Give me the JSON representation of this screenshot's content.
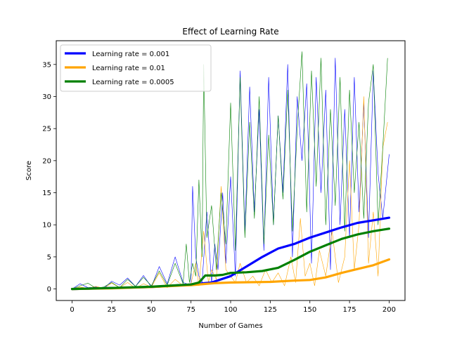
{
  "chart_data": {
    "type": "line",
    "title": "Effect of Learning Rate",
    "xlabel": "Number of Games",
    "ylabel": "Score",
    "xlim": [
      -10,
      210
    ],
    "ylim": [
      -1.8,
      38.7
    ],
    "xticks": [
      0,
      25,
      50,
      75,
      100,
      125,
      150,
      175,
      200
    ],
    "yticks": [
      0,
      5,
      10,
      15,
      20,
      25,
      30,
      35
    ],
    "grid": false,
    "legend_position": "top-left",
    "series": [
      {
        "name": "Learning rate = 0.001",
        "color": "#0000ff",
        "raw_line_width": 0.6,
        "mean_line_width": 3.2,
        "raw_points": [
          [
            0,
            0
          ],
          [
            5,
            0.8
          ],
          [
            10,
            0.2
          ],
          [
            15,
            0.3
          ],
          [
            20,
            0.1
          ],
          [
            25,
            1.2
          ],
          [
            30,
            0.6
          ],
          [
            35,
            1.7
          ],
          [
            40,
            0.4
          ],
          [
            45,
            2.1
          ],
          [
            50,
            0.3
          ],
          [
            55,
            3.5
          ],
          [
            60,
            0.8
          ],
          [
            65,
            5.0
          ],
          [
            70,
            1.0
          ],
          [
            75,
            0.6
          ],
          [
            76,
            16.0
          ],
          [
            78,
            5.0
          ],
          [
            80,
            2.0
          ],
          [
            82,
            1.0
          ],
          [
            85,
            12.0
          ],
          [
            88,
            1.0
          ],
          [
            90,
            7.0
          ],
          [
            92,
            3.0
          ],
          [
            95,
            15.0
          ],
          [
            97,
            4.0
          ],
          [
            100,
            17.5
          ],
          [
            103,
            2.0
          ],
          [
            106,
            34.0
          ],
          [
            109,
            9.0
          ],
          [
            112,
            31.5
          ],
          [
            115,
            12.0
          ],
          [
            118,
            28.0
          ],
          [
            121,
            6.0
          ],
          [
            124,
            33.0
          ],
          [
            127,
            10.0
          ],
          [
            130,
            27.0
          ],
          [
            133,
            15.0
          ],
          [
            136,
            35.0
          ],
          [
            139,
            5.0
          ],
          [
            142,
            30.0
          ],
          [
            145,
            20.0
          ],
          [
            148,
            32.0
          ],
          [
            151,
            4.0
          ],
          [
            154,
            33.0
          ],
          [
            157,
            15.0
          ],
          [
            160,
            31.0
          ],
          [
            163,
            3.0
          ],
          [
            166,
            36.0
          ],
          [
            169,
            10.0
          ],
          [
            172,
            28.0
          ],
          [
            175,
            8.0
          ],
          [
            178,
            33.0
          ],
          [
            181,
            12.0
          ],
          [
            184,
            29.0
          ],
          [
            187,
            8.0
          ],
          [
            190,
            34.0
          ],
          [
            193,
            18.0
          ],
          [
            196,
            11.0
          ],
          [
            200,
            21.0
          ]
        ],
        "mean_points": [
          [
            0,
            0
          ],
          [
            25,
            0.15
          ],
          [
            50,
            0.3
          ],
          [
            75,
            0.7
          ],
          [
            88,
            1.0
          ],
          [
            100,
            2.0
          ],
          [
            110,
            3.5
          ],
          [
            120,
            5.0
          ],
          [
            130,
            6.3
          ],
          [
            140,
            7.0
          ],
          [
            150,
            8.0
          ],
          [
            160,
            8.8
          ],
          [
            170,
            9.6
          ],
          [
            180,
            10.3
          ],
          [
            190,
            10.7
          ],
          [
            200,
            11.1
          ]
        ]
      },
      {
        "name": "Learning rate = 0.01",
        "color": "#ffa500",
        "raw_line_width": 0.6,
        "mean_line_width": 3.2,
        "raw_points": [
          [
            0,
            0
          ],
          [
            5,
            0.3
          ],
          [
            10,
            0.1
          ],
          [
            15,
            0.4
          ],
          [
            20,
            0.1
          ],
          [
            25,
            0.9
          ],
          [
            30,
            0.2
          ],
          [
            35,
            1.0
          ],
          [
            40,
            0.1
          ],
          [
            45,
            0.8
          ],
          [
            50,
            0.3
          ],
          [
            55,
            2.5
          ],
          [
            60,
            0.2
          ],
          [
            65,
            1.5
          ],
          [
            70,
            0.5
          ],
          [
            75,
            0.8
          ],
          [
            78,
            4.0
          ],
          [
            80,
            0.5
          ],
          [
            83,
            9.0
          ],
          [
            86,
            1.0
          ],
          [
            88,
            3.0
          ],
          [
            91,
            1.5
          ],
          [
            94,
            16.0
          ],
          [
            97,
            3.0
          ],
          [
            100,
            2.0
          ],
          [
            103,
            1.0
          ],
          [
            106,
            4.0
          ],
          [
            110,
            1.0
          ],
          [
            114,
            2.0
          ],
          [
            118,
            0.5
          ],
          [
            122,
            3.0
          ],
          [
            126,
            1.0
          ],
          [
            130,
            2.5
          ],
          [
            134,
            0.5
          ],
          [
            138,
            5.0
          ],
          [
            141,
            1.0
          ],
          [
            144,
            11.0
          ],
          [
            147,
            2.0
          ],
          [
            150,
            4.0
          ],
          [
            153,
            0.5
          ],
          [
            156,
            6.0
          ],
          [
            160,
            2.0
          ],
          [
            164,
            9.0
          ],
          [
            168,
            1.0
          ],
          [
            172,
            5.0
          ],
          [
            175,
            20.0
          ],
          [
            178,
            3.0
          ],
          [
            181,
            10.0
          ],
          [
            184,
            30.0
          ],
          [
            187,
            4.0
          ],
          [
            190,
            12.0
          ],
          [
            193,
            2.0
          ],
          [
            196,
            22.0
          ],
          [
            199,
            26.0
          ]
        ],
        "mean_points": [
          [
            0,
            0
          ],
          [
            25,
            0.1
          ],
          [
            50,
            0.3
          ],
          [
            75,
            0.6
          ],
          [
            90,
            0.9
          ],
          [
            100,
            1.0
          ],
          [
            125,
            1.1
          ],
          [
            140,
            1.3
          ],
          [
            150,
            1.4
          ],
          [
            160,
            1.8
          ],
          [
            170,
            2.5
          ],
          [
            180,
            3.1
          ],
          [
            190,
            3.7
          ],
          [
            200,
            4.6
          ]
        ]
      },
      {
        "name": "Learning rate = 0.0005",
        "color": "#008000",
        "raw_line_width": 0.6,
        "mean_line_width": 3.2,
        "raw_points": [
          [
            0,
            0
          ],
          [
            5,
            0.5
          ],
          [
            10,
            0.9
          ],
          [
            15,
            0.1
          ],
          [
            20,
            0.3
          ],
          [
            25,
            1.0
          ],
          [
            30,
            0.2
          ],
          [
            35,
            1.5
          ],
          [
            40,
            0.4
          ],
          [
            45,
            1.8
          ],
          [
            50,
            0.5
          ],
          [
            55,
            2.8
          ],
          [
            60,
            0.6
          ],
          [
            65,
            4.0
          ],
          [
            70,
            0.8
          ],
          [
            72,
            7.0
          ],
          [
            74,
            1.0
          ],
          [
            76,
            4.0
          ],
          [
            78,
            2.0
          ],
          [
            80,
            17.0
          ],
          [
            82,
            5.0
          ],
          [
            83,
            35.0
          ],
          [
            85,
            8.0
          ],
          [
            88,
            13.0
          ],
          [
            91,
            3.0
          ],
          [
            94,
            15.0
          ],
          [
            97,
            7.0
          ],
          [
            100,
            29.0
          ],
          [
            103,
            6.0
          ],
          [
            106,
            33.0
          ],
          [
            109,
            8.0
          ],
          [
            112,
            26.0
          ],
          [
            115,
            11.0
          ],
          [
            118,
            30.0
          ],
          [
            121,
            7.0
          ],
          [
            124,
            24.0
          ],
          [
            127,
            10.0
          ],
          [
            130,
            27.0
          ],
          [
            133,
            14.0
          ],
          [
            136,
            31.0
          ],
          [
            139,
            9.0
          ],
          [
            142,
            25.0
          ],
          [
            145,
            37.0
          ],
          [
            148,
            12.0
          ],
          [
            151,
            34.0
          ],
          [
            154,
            16.0
          ],
          [
            157,
            36.0
          ],
          [
            160,
            10.0
          ],
          [
            163,
            28.0
          ],
          [
            166,
            13.0
          ],
          [
            169,
            33.0
          ],
          [
            172,
            9.0
          ],
          [
            175,
            31.0
          ],
          [
            178,
            15.0
          ],
          [
            181,
            26.0
          ],
          [
            184,
            11.0
          ],
          [
            187,
            29.0
          ],
          [
            190,
            35.0
          ],
          [
            193,
            10.0
          ],
          [
            196,
            22.0
          ],
          [
            199,
            36.0
          ]
        ],
        "mean_points": [
          [
            0,
            0
          ],
          [
            25,
            0.15
          ],
          [
            50,
            0.35
          ],
          [
            75,
            0.7
          ],
          [
            80,
            1.0
          ],
          [
            84,
            2.1
          ],
          [
            90,
            2.1
          ],
          [
            95,
            2.2
          ],
          [
            100,
            2.5
          ],
          [
            110,
            2.6
          ],
          [
            120,
            2.8
          ],
          [
            130,
            3.3
          ],
          [
            140,
            4.5
          ],
          [
            150,
            5.8
          ],
          [
            160,
            6.8
          ],
          [
            170,
            7.8
          ],
          [
            180,
            8.5
          ],
          [
            190,
            9.0
          ],
          [
            200,
            9.4
          ]
        ]
      }
    ]
  }
}
